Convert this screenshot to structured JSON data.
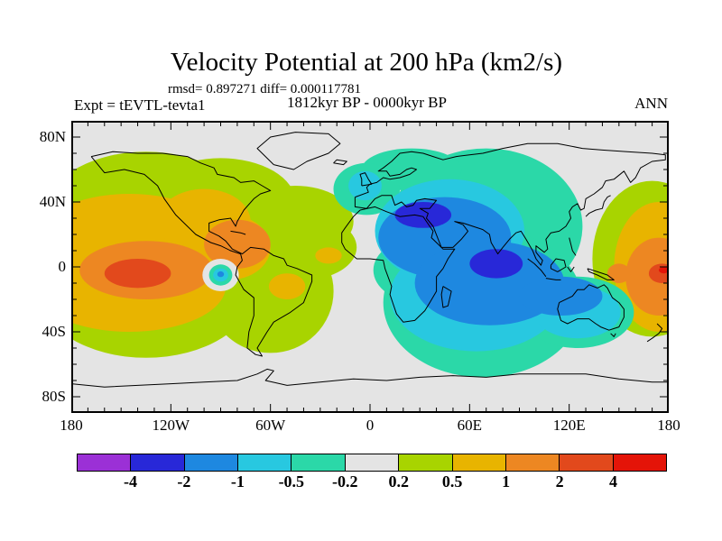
{
  "header": {
    "title": "Velocity Potential at 200 hPa (km2/s)",
    "stats": "rmsd= 0.897271 diff= 0.000117781",
    "period": "1812kyr BP - 0000kyr BP",
    "experiment": "Expt = tEVTL-tevta1",
    "season": "ANN"
  },
  "map": {
    "background": "#E4E4E4",
    "coastline_color": "#000000",
    "frame_color": "#000000",
    "y_ticks": [
      {
        "label": "80N",
        "lat": 80
      },
      {
        "label": "40N",
        "lat": 40
      },
      {
        "label": "0",
        "lat": 0
      },
      {
        "label": "40S",
        "lat": -40
      },
      {
        "label": "80S",
        "lat": -80
      }
    ],
    "x_ticks": [
      {
        "label": "180",
        "lon": -180
      },
      {
        "label": "120W",
        "lon": -120
      },
      {
        "label": "60W",
        "lon": -60
      },
      {
        "label": "0",
        "lon": 0
      },
      {
        "label": "60E",
        "lon": 60
      },
      {
        "label": "120E",
        "lon": 120
      },
      {
        "label": "180",
        "lon": 180
      }
    ]
  },
  "colorbar": {
    "boundary_labels": [
      "-4",
      "-2",
      "-1",
      "-0.5",
      "-0.2",
      "0.2",
      "0.5",
      "1",
      "2",
      "4"
    ],
    "colors": [
      "#9B30D6",
      "#2828D8",
      "#1E88E0",
      "#28C8E0",
      "#2BD8A8",
      "#E4E4E4",
      "#A8D400",
      "#E8B400",
      "#ED8722",
      "#E2491C",
      "#E41408"
    ]
  },
  "chart_data": {
    "type": "heatmap",
    "subtype": "filled-contour-world-map",
    "title": "Velocity Potential at 200 hPa (km2/s)",
    "variable": "Velocity Potential",
    "pressure_level": "200 hPa",
    "units": "km2/s",
    "stats": {
      "rmsd": 0.897271,
      "diff": 0.000117781
    },
    "comparison": "1812kyr BP - 0000kyr BP",
    "experiment": "tEVTL-tevta1",
    "season": "ANN",
    "projection": "equirectangular",
    "x_axis": {
      "tick_labels": [
        "180",
        "120W",
        "60W",
        "0",
        "60E",
        "120E",
        "180"
      ],
      "range_deg": [
        -180,
        180
      ],
      "minor_tick_spacing_deg": 10
    },
    "y_axis": {
      "tick_labels": [
        "80N",
        "40N",
        "0",
        "40S",
        "80S"
      ],
      "range_deg": [
        -90,
        90
      ],
      "minor_tick_spacing_deg": 10
    },
    "contour_levels": [
      -4,
      -2,
      -1,
      -0.5,
      -0.2,
      0.2,
      0.5,
      1,
      2,
      4
    ],
    "legend_position": "bottom",
    "anomaly_centers": [
      {
        "sign": "positive",
        "value_range": "2 to 4",
        "location": "eastern tropical Pacific near 140W, 5S"
      },
      {
        "sign": "positive",
        "value_range": "1 to 2",
        "location": "Caribbean / Gulf of Mexico and tropical central Pacific"
      },
      {
        "sign": "positive",
        "value_range": "0.2 to 1",
        "location": "Americas and most of the eastern Pacific"
      },
      {
        "sign": "positive",
        "value_range": "1 to 4",
        "location": "western Pacific near the dateline, east of New Guinea"
      },
      {
        "sign": "negative",
        "value_range": "-2 to -4",
        "location": "eastern Mediterranean / Middle East near 30E, 32N"
      },
      {
        "sign": "negative",
        "value_range": "-2 to -4",
        "location": "southern India / equatorial Indian Ocean near 75E"
      },
      {
        "sign": "negative",
        "value_range": "-0.2 to -1",
        "location": "Europe, Africa, Indian Ocean, Siberia and Australia"
      },
      {
        "sign": "negative",
        "value_range": "-0.5 to -1",
        "location": "small closed low off Peru coast near 90W, 5S"
      },
      {
        "sign": "near-zero",
        "value_range": "-0.2 to 0.2",
        "location": "Atlantic corridor, polar caps, East Asia corridor"
      }
    ]
  }
}
